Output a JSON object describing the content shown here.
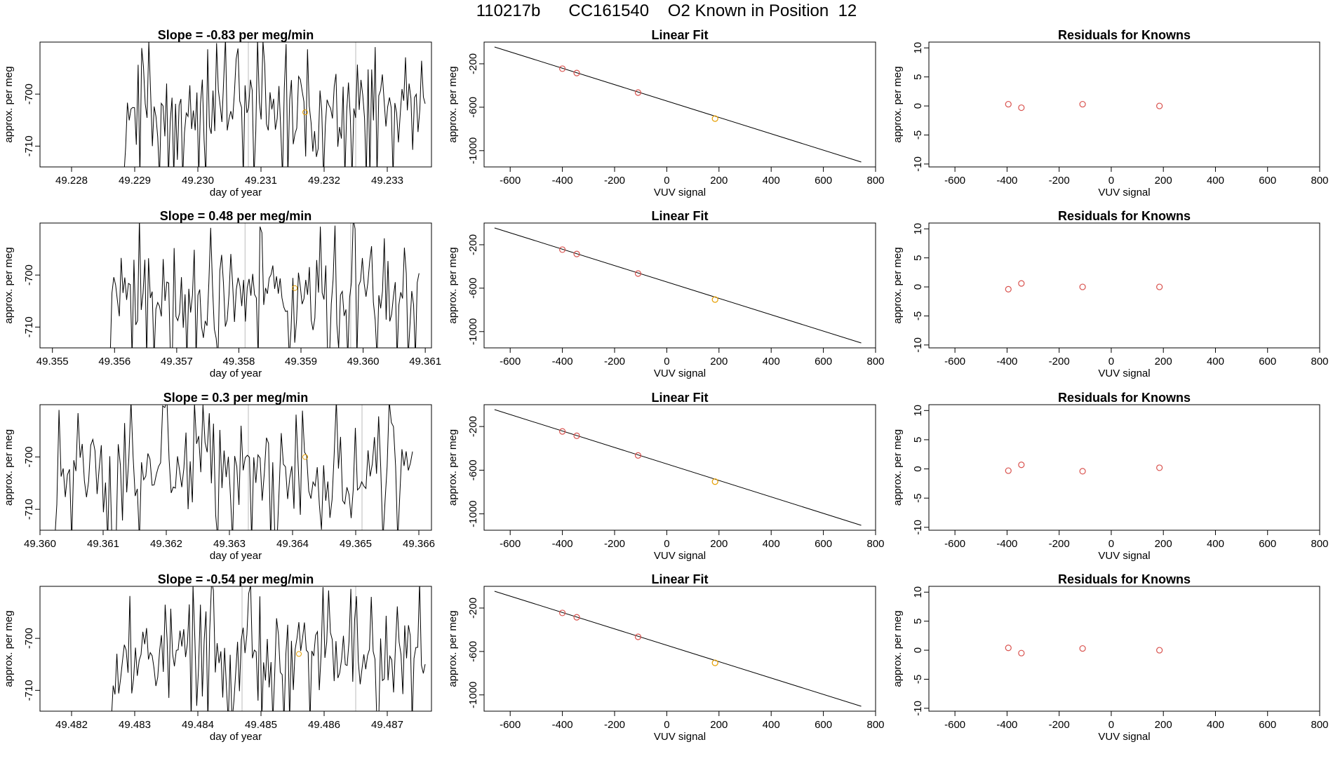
{
  "page_title": "110217b      CC161540    O2 Known in Position  12",
  "chart_data": [
    {
      "type": "line",
      "title": "Slope =  -0.83  per meg/min",
      "xlabel": "day of year",
      "ylabel": "approx. per meg",
      "xlim": [
        49.2275,
        49.2337
      ],
      "ylim": [
        -714,
        -690
      ],
      "xticks": [
        49.228,
        49.229,
        49.23,
        49.231,
        49.232,
        49.233
      ],
      "xtick_labels": [
        "49.228",
        "49.229",
        "49.230",
        "49.231",
        "49.232",
        "49.233"
      ],
      "yticks": [
        -700,
        -710
      ],
      "ytick_labels": [
        "-700",
        "-710"
      ],
      "series_start": 49.2288,
      "series_end": 49.2336,
      "vlines": [
        49.2308,
        49.2325
      ],
      "known_point": {
        "x": 49.2317,
        "y": -703.5
      },
      "seed": 11
    },
    {
      "type": "scatter",
      "title": "Linear Fit",
      "xlabel": "VUV signal",
      "ylabel": "approx. per meg",
      "xlim": [
        -700,
        800
      ],
      "ylim": [
        -1150,
        0
      ],
      "xticks": [
        -600,
        -400,
        -200,
        0,
        200,
        400,
        600,
        800
      ],
      "xtick_labels": [
        "-600",
        "-400",
        "-200",
        "0",
        "200",
        "400",
        "600",
        "800"
      ],
      "yticks": [
        -200,
        -600,
        -1000
      ],
      "ytick_labels": [
        "-200",
        "-600",
        "-1000"
      ],
      "fit_line": {
        "x": [
          -660,
          745
        ],
        "y": [
          -45,
          -1105
        ]
      },
      "points": {
        "x": [
          -400,
          -345,
          -110
        ],
        "y": [
          -245,
          -285,
          -465
        ]
      },
      "known_point": {
        "x": 185,
        "y": -705
      }
    },
    {
      "type": "scatter",
      "title": "Residuals for Knowns",
      "xlabel": "VUV signal",
      "ylabel": "approx. per meg",
      "xlim": [
        -700,
        800
      ],
      "ylim": [
        -10.5,
        11
      ],
      "xticks": [
        -600,
        -400,
        -200,
        0,
        200,
        400,
        600,
        800
      ],
      "xtick_labels": [
        "-600",
        "-400",
        "-200",
        "0",
        "200",
        "400",
        "600",
        "800"
      ],
      "yticks": [
        10,
        5,
        0,
        -5,
        -10
      ],
      "ytick_labels": [
        "10",
        "5",
        "0",
        "-5",
        "-10"
      ],
      "points": {
        "x": [
          -395,
          -345,
          -110,
          185
        ],
        "y": [
          0.3,
          -0.3,
          0.3,
          0.0
        ]
      }
    },
    {
      "type": "line",
      "title": "Slope =  0.48  per meg/min",
      "xlabel": "day of year",
      "ylabel": "approx. per meg",
      "xlim": [
        49.3548,
        49.3611
      ],
      "ylim": [
        -714,
        -690
      ],
      "xticks": [
        49.355,
        49.356,
        49.357,
        49.358,
        49.359,
        49.36,
        49.361
      ],
      "xtick_labels": [
        "49.355",
        "49.356",
        "49.357",
        "49.358",
        "49.359",
        "49.360",
        "49.361"
      ],
      "yticks": [
        -700,
        -710
      ],
      "ytick_labels": [
        "-700",
        "-710"
      ],
      "series_start": 49.3559,
      "series_end": 49.3609,
      "vlines": [
        49.3581,
        49.3598
      ],
      "known_point": {
        "x": 49.3589,
        "y": -702.5
      },
      "seed": 23
    },
    {
      "type": "scatter",
      "title": "Linear Fit",
      "xlabel": "VUV signal",
      "ylabel": "approx. per meg",
      "xlim": [
        -700,
        800
      ],
      "ylim": [
        -1150,
        0
      ],
      "xticks": [
        -600,
        -400,
        -200,
        0,
        200,
        400,
        600,
        800
      ],
      "xtick_labels": [
        "-600",
        "-400",
        "-200",
        "0",
        "200",
        "400",
        "600",
        "800"
      ],
      "yticks": [
        -200,
        -600,
        -1000
      ],
      "ytick_labels": [
        "-200",
        "-600",
        "-1000"
      ],
      "fit_line": {
        "x": [
          -660,
          745
        ],
        "y": [
          -45,
          -1105
        ]
      },
      "points": {
        "x": [
          -400,
          -345,
          -110
        ],
        "y": [
          -245,
          -285,
          -465
        ]
      },
      "known_point": {
        "x": 185,
        "y": -705
      }
    },
    {
      "type": "scatter",
      "title": "Residuals for Knowns",
      "xlabel": "VUV signal",
      "ylabel": "approx. per meg",
      "xlim": [
        -700,
        800
      ],
      "ylim": [
        -10.5,
        11
      ],
      "xticks": [
        -600,
        -400,
        -200,
        0,
        200,
        400,
        600,
        800
      ],
      "xtick_labels": [
        "-600",
        "-400",
        "-200",
        "0",
        "200",
        "400",
        "600",
        "800"
      ],
      "yticks": [
        10,
        5,
        0,
        -5,
        -10
      ],
      "ytick_labels": [
        "10",
        "5",
        "0",
        "-5",
        "-10"
      ],
      "points": {
        "x": [
          -395,
          -345,
          -110,
          185
        ],
        "y": [
          -0.4,
          0.6,
          0.0,
          0.0
        ]
      }
    },
    {
      "type": "line",
      "title": "Slope =  0.3  per meg/min",
      "xlabel": "day of year",
      "ylabel": "approx. per meg",
      "xlim": [
        49.36,
        49.3662
      ],
      "ylim": [
        -714,
        -690
      ],
      "xticks": [
        49.36,
        49.361,
        49.362,
        49.363,
        49.364,
        49.365,
        49.366
      ],
      "xtick_labels": [
        "49.360",
        "49.361",
        "49.362",
        "49.363",
        "49.364",
        "49.365",
        "49.366"
      ],
      "yticks": [
        -700,
        -710
      ],
      "ytick_labels": [
        "-700",
        "-710"
      ],
      "series_start": 49.3602,
      "series_end": 49.3659,
      "vlines": [
        49.3633,
        49.3651
      ],
      "known_point": {
        "x": 49.3642,
        "y": -700.0
      },
      "seed": 37
    },
    {
      "type": "scatter",
      "title": "Linear Fit",
      "xlabel": "VUV signal",
      "ylabel": "approx. per meg",
      "xlim": [
        -700,
        800
      ],
      "ylim": [
        -1150,
        0
      ],
      "xticks": [
        -600,
        -400,
        -200,
        0,
        200,
        400,
        600,
        800
      ],
      "xtick_labels": [
        "-600",
        "-400",
        "-200",
        "0",
        "200",
        "400",
        "600",
        "800"
      ],
      "yticks": [
        -200,
        -600,
        -1000
      ],
      "ytick_labels": [
        "-200",
        "-600",
        "-1000"
      ],
      "fit_line": {
        "x": [
          -660,
          745
        ],
        "y": [
          -45,
          -1105
        ]
      },
      "points": {
        "x": [
          -400,
          -345,
          -110
        ],
        "y": [
          -245,
          -285,
          -465
        ]
      },
      "known_point": {
        "x": 185,
        "y": -705
      }
    },
    {
      "type": "scatter",
      "title": "Residuals for Knowns",
      "xlabel": "VUV signal",
      "ylabel": "approx. per meg",
      "xlim": [
        -700,
        800
      ],
      "ylim": [
        -10.5,
        11
      ],
      "xticks": [
        -600,
        -400,
        -200,
        0,
        200,
        400,
        600,
        800
      ],
      "xtick_labels": [
        "-600",
        "-400",
        "-200",
        "0",
        "200",
        "400",
        "600",
        "800"
      ],
      "yticks": [
        10,
        5,
        0,
        -5,
        -10
      ],
      "ytick_labels": [
        "10",
        "5",
        "0",
        "-5",
        "-10"
      ],
      "points": {
        "x": [
          -395,
          -345,
          -110,
          185
        ],
        "y": [
          -0.3,
          0.7,
          -0.4,
          0.2
        ]
      }
    },
    {
      "type": "line",
      "title": "Slope =  -0.54  per meg/min",
      "xlabel": "day of year",
      "ylabel": "approx. per meg",
      "xlim": [
        49.4815,
        49.4877
      ],
      "ylim": [
        -714,
        -690
      ],
      "xticks": [
        49.482,
        49.483,
        49.484,
        49.485,
        49.486,
        49.487
      ],
      "xtick_labels": [
        "49.482",
        "49.483",
        "49.484",
        "49.485",
        "49.486",
        "49.487"
      ],
      "yticks": [
        -700,
        -710
      ],
      "ytick_labels": [
        "-700",
        "-710"
      ],
      "series_start": 49.4826,
      "series_end": 49.4876,
      "vlines": [
        49.4847,
        49.4865
      ],
      "known_point": {
        "x": 49.4856,
        "y": -703.0
      },
      "seed": 53
    },
    {
      "type": "scatter",
      "title": "Linear Fit",
      "xlabel": "VUV signal",
      "ylabel": "approx. per meg",
      "xlim": [
        -700,
        800
      ],
      "ylim": [
        -1150,
        0
      ],
      "xticks": [
        -600,
        -400,
        -200,
        0,
        200,
        400,
        600,
        800
      ],
      "xtick_labels": [
        "-600",
        "-400",
        "-200",
        "0",
        "200",
        "400",
        "600",
        "800"
      ],
      "yticks": [
        -200,
        -600,
        -1000
      ],
      "ytick_labels": [
        "-200",
        "-600",
        "-1000"
      ],
      "fit_line": {
        "x": [
          -660,
          745
        ],
        "y": [
          -45,
          -1105
        ]
      },
      "points": {
        "x": [
          -400,
          -345,
          -110
        ],
        "y": [
          -245,
          -285,
          -465
        ]
      },
      "known_point": {
        "x": 185,
        "y": -705
      }
    },
    {
      "type": "scatter",
      "title": "Residuals for Knowns",
      "xlabel": "VUV signal",
      "ylabel": "approx. per meg",
      "xlim": [
        -700,
        800
      ],
      "ylim": [
        -10.5,
        11
      ],
      "xticks": [
        -600,
        -400,
        -200,
        0,
        200,
        400,
        600,
        800
      ],
      "xtick_labels": [
        "-600",
        "-400",
        "-200",
        "0",
        "200",
        "400",
        "600",
        "800"
      ],
      "yticks": [
        10,
        5,
        0,
        -5,
        -10
      ],
      "ytick_labels": [
        "10",
        "5",
        "0",
        "-5",
        "-10"
      ],
      "points": {
        "x": [
          -395,
          -345,
          -110,
          185
        ],
        "y": [
          0.4,
          -0.5,
          0.3,
          0.0
        ]
      }
    }
  ]
}
